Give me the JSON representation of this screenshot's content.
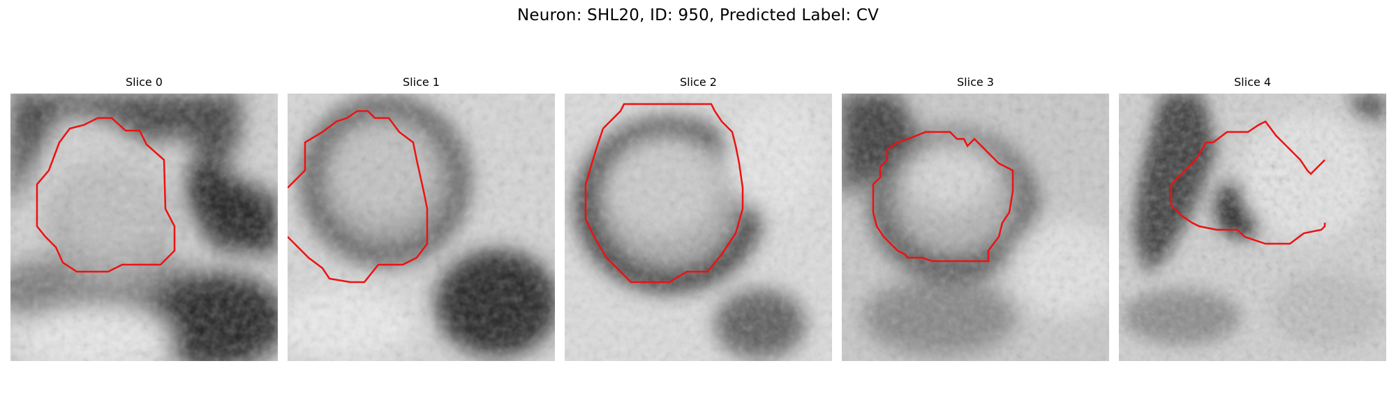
{
  "figure": {
    "title": "Neuron: SHL20, ID: 950, Predicted Label: CV"
  },
  "panels": [
    {
      "title": "Slice 0",
      "contour_color": "#ee1111",
      "content": "grayscale EM patch with round bright vesicle outlined in red, darker blob bottom-right"
    },
    {
      "title": "Slice 1",
      "contour_color": "#ee1111",
      "content": "grayscale EM patch with round vesicle in upper-center outlined in red, dark blob bottom-right"
    },
    {
      "title": "Slice 2",
      "contour_color": "#ee1111",
      "content": "grayscale EM patch with octagonal vesicle centered, outlined in red"
    },
    {
      "title": "Slice 3",
      "contour_color": "#ee1111",
      "content": "grayscale EM patch with smaller vesicle centered, outlined in red"
    },
    {
      "title": "Slice 4",
      "contour_color": "#ee1111",
      "content": "grayscale EM patch with irregular texture, red contour along right side"
    }
  ]
}
